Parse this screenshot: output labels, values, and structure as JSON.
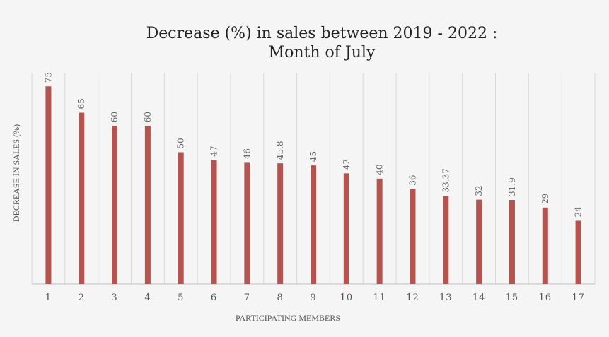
{
  "chart_data": {
    "type": "bar",
    "title_line1": "Decrease (%) in sales between 2019 - 2022 :",
    "title_line2": "Month of July",
    "xlabel": "PARTICIPATING MEMBERS",
    "ylabel": "DECREASE IN SALES (%)",
    "categories": [
      "1",
      "2",
      "3",
      "4",
      "5",
      "6",
      "7",
      "8",
      "9",
      "10",
      "11",
      "12",
      "13",
      "14",
      "15",
      "16",
      "17"
    ],
    "values": [
      75,
      65,
      60,
      60,
      50,
      47,
      46,
      45.8,
      45,
      42,
      40,
      36,
      33.37,
      32,
      31.9,
      29,
      24
    ],
    "value_labels": [
      "75",
      "65",
      "60",
      "60",
      "50",
      "47",
      "46",
      "45.8",
      "45",
      "42",
      "40",
      "36",
      "33.37",
      "32",
      "31.9",
      "29",
      "24"
    ],
    "ylim": [
      0,
      80
    ],
    "grid": "vertical",
    "bar_color": "#b5534f"
  }
}
